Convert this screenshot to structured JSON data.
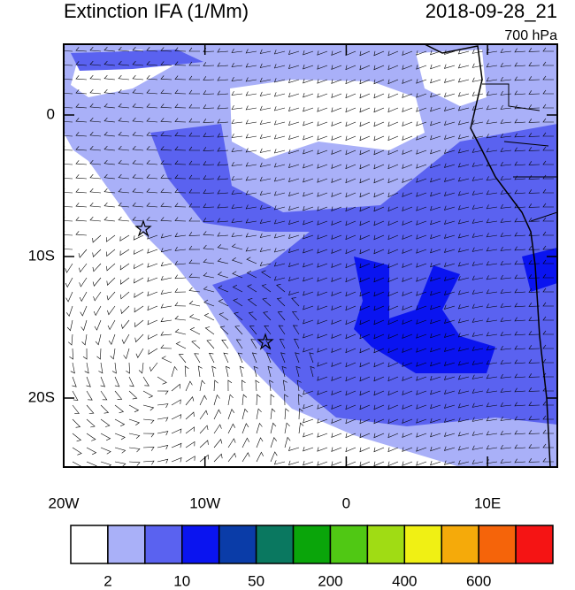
{
  "header": {
    "title": "Extinction IFA (1/Mm)",
    "time": "2018-09-28_21",
    "level": "700 hPa"
  },
  "axes": {
    "lat_labels": [
      "0",
      "10S",
      "20S"
    ],
    "lon_labels": [
      "20W",
      "10W",
      "0",
      "10E"
    ]
  },
  "colorbar": {
    "colors": [
      "#ffffff",
      "#a9b0f8",
      "#5a62f0",
      "#0a14f0",
      "#0a3ca8",
      "#0a7860",
      "#0aa50a",
      "#50c814",
      "#a0dc14",
      "#f0f014",
      "#f5aa0a",
      "#f5640a",
      "#f51414"
    ],
    "labels": [
      "2",
      "10",
      "50",
      "200",
      "400",
      "600"
    ]
  }
}
